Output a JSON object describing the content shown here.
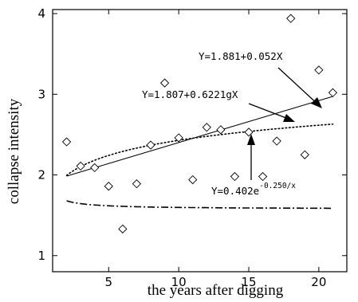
{
  "chart_data": {
    "type": "scatter",
    "title": "",
    "xlabel": "the years after digging",
    "ylabel": "collapse intensity",
    "xlim": [
      1,
      22
    ],
    "ylim": [
      0.8,
      4.05
    ],
    "xticks": [
      5,
      10,
      15,
      20
    ],
    "yticks": [
      1,
      2,
      3,
      4
    ],
    "grid": false,
    "points": {
      "name": "",
      "marker": "diamond",
      "x": [
        2,
        3,
        4,
        5,
        6,
        7,
        8,
        9,
        10,
        11,
        12,
        13,
        14,
        15,
        16,
        17,
        18,
        19,
        20,
        21
      ],
      "y": [
        2.41,
        2.11,
        2.09,
        1.86,
        1.33,
        1.89,
        2.37,
        3.14,
        2.46,
        1.94,
        2.59,
        2.56,
        1.98,
        2.53,
        1.98,
        2.42,
        3.94,
        2.25,
        3.3,
        3.02
      ]
    },
    "series": [
      {
        "name": "linear",
        "style": "solid",
        "equation": {
          "main": "Y=1.881+0.052X"
        }
      },
      {
        "name": "logarithmic",
        "style": "dotted",
        "equation": {
          "main": "Y=1.807+0.6221gX"
        }
      },
      {
        "name": "exponential",
        "style": "dashdot",
        "equation": {
          "main": "Y=0.402e",
          "superscript": "-0.250/x"
        }
      }
    ]
  }
}
